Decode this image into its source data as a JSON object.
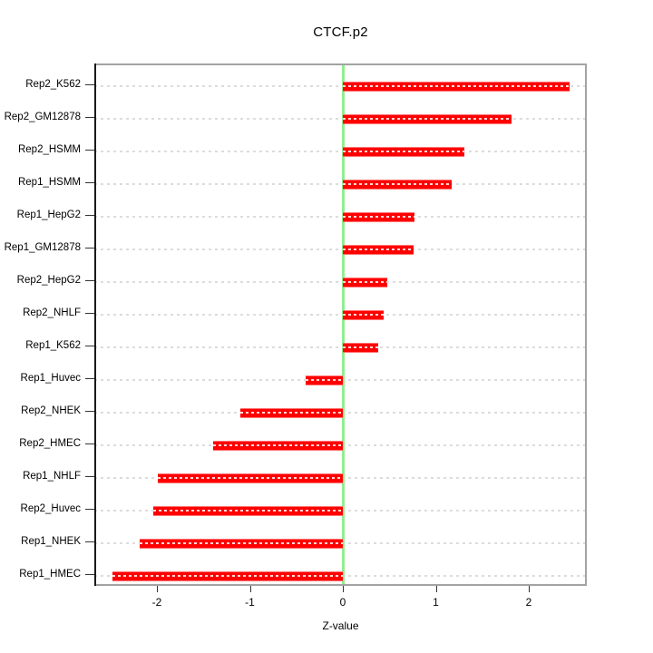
{
  "chart_data": {
    "type": "bar",
    "orientation": "horizontal",
    "title": "CTCF.p2",
    "xlabel": "Z-value",
    "ylabel": "",
    "categories": [
      "Rep2_K562",
      "Rep2_GM12878",
      "Rep2_HSMM",
      "Rep1_HSMM",
      "Rep1_HepG2",
      "Rep1_GM12878",
      "Rep2_HepG2",
      "Rep2_NHLF",
      "Rep1_K562",
      "Rep1_Huvec",
      "Rep2_NHEK",
      "Rep2_HMEC",
      "Rep1_NHLF",
      "Rep2_Huvec",
      "Rep1_NHEK",
      "Rep1_HMEC"
    ],
    "values": [
      2.44,
      1.81,
      1.31,
      1.17,
      0.77,
      0.76,
      0.48,
      0.44,
      0.38,
      -0.4,
      -1.1,
      -1.4,
      -1.99,
      -2.04,
      -2.19,
      -2.48
    ],
    "x_ticks": [
      -2,
      -1,
      0,
      1,
      2
    ],
    "x_tick_labels": [
      "-2",
      "-1",
      "0",
      "1",
      "2"
    ],
    "xlim": [
      -2.67,
      2.62
    ],
    "grid": "dotted-horizontal-per-category",
    "legend": "none",
    "zero_reference_line": 0,
    "colors": {
      "bar": "#ff0000",
      "bar_dash_pattern": "#ffd9d9",
      "zero_line": "#90ee90",
      "gridline": "#dcdcdc",
      "box_border": "#a3a3a3",
      "left_axis": "#1a1a1a",
      "text": "#000000",
      "background": "#ffffff"
    }
  }
}
